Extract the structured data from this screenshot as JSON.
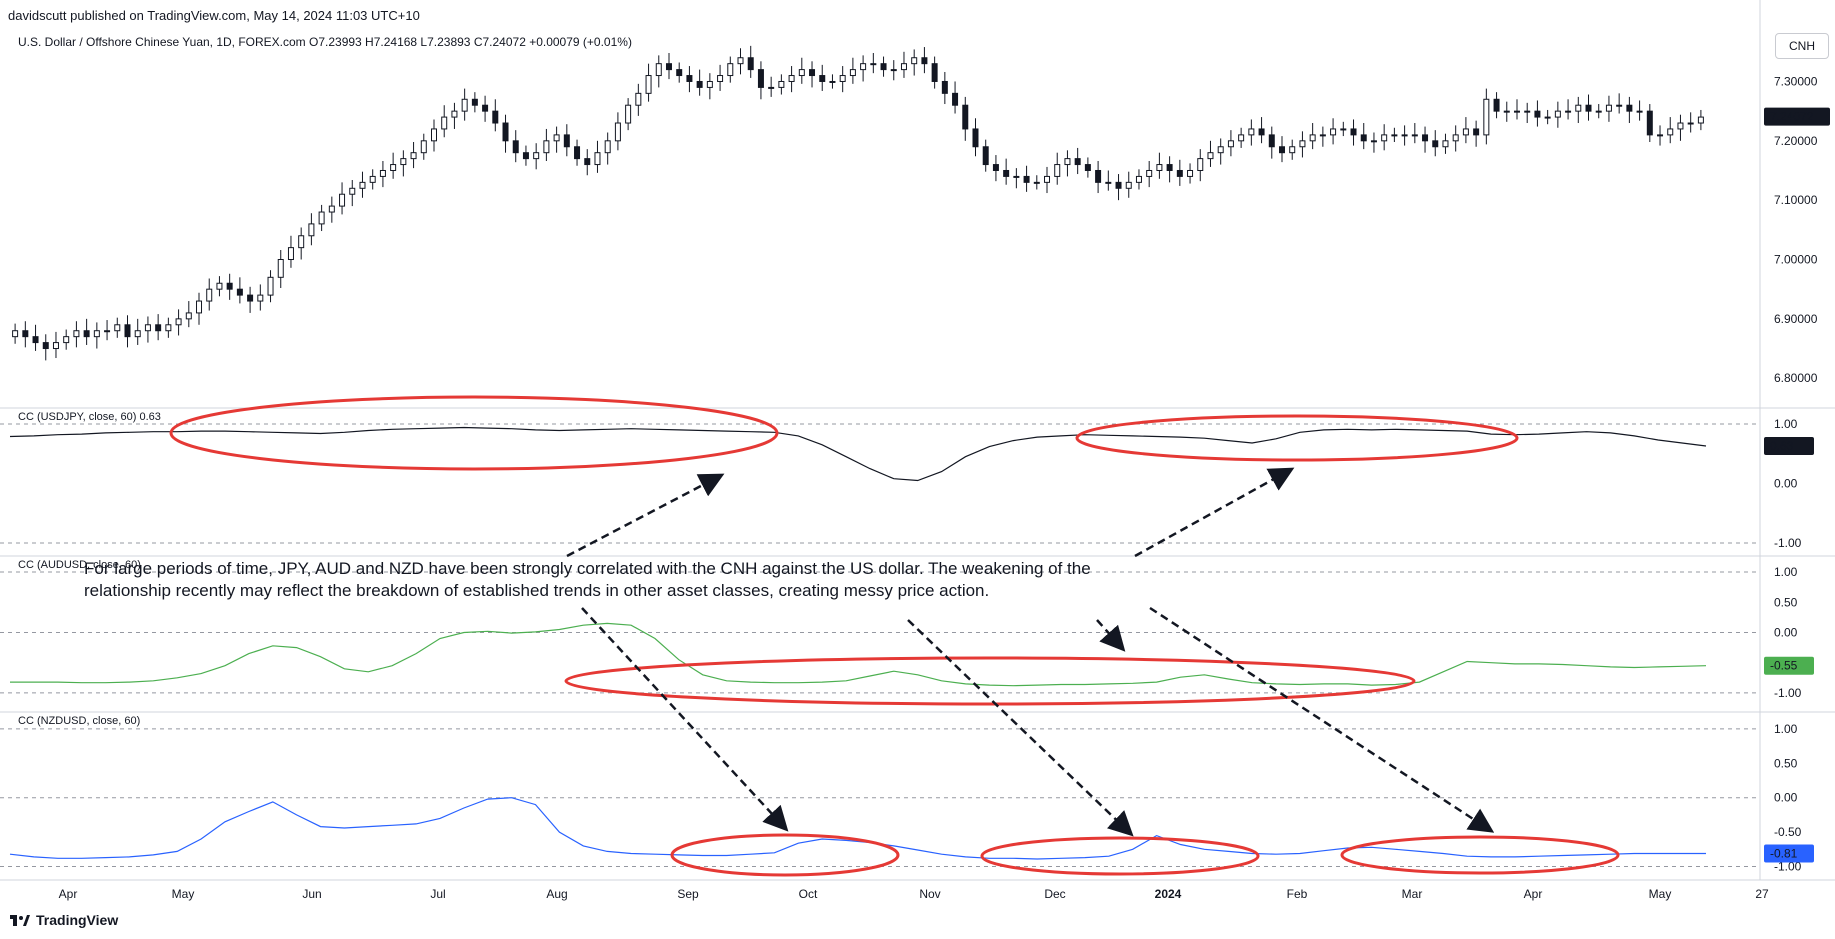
{
  "publisher": "davidscutt published on TradingView.com, May 14, 2024 11:03 UTC+10",
  "instrument": "U.S. Dollar / Offshore Chinese Yuan, 1D, FOREX.com   O7.23993  H7.24168  L7.23893  C7.24072  +0.00079 (+0.01%)",
  "currency_button": "CNH",
  "brand": "TradingView",
  "annotation": "For large periods of time, JPY, AUD and NZD have been strongly correlated with the CNH against the US dollar. The weakening of the relationship recently may reflect the breakdown of established trends in other asset classes, creating messy price action.",
  "colors": {
    "up": "#131722",
    "down": "#131722",
    "usdjpy": "#131722",
    "audusd": "#4caf50",
    "nzdusd": "#2962ff",
    "ellipse": "#e53935",
    "grid": "#d1d4dc"
  },
  "chart_data": [
    {
      "type": "candlestick",
      "name": "USDCNH",
      "x_labels": [
        "Apr",
        "May",
        "Jun",
        "Jul",
        "Aug",
        "Sep",
        "Oct",
        "Nov",
        "Dec",
        "2024",
        "Feb",
        "Mar",
        "Apr",
        "May",
        "27"
      ],
      "ylim": [
        6.77,
        7.38
      ],
      "yticks": [
        "7.30000",
        "7.20000",
        "7.10000",
        "7.00000",
        "6.90000",
        "6.80000"
      ],
      "last_value": "7.24072",
      "close": [
        6.88,
        6.87,
        6.86,
        6.85,
        6.86,
        6.87,
        6.88,
        6.87,
        6.88,
        6.88,
        6.89,
        6.87,
        6.88,
        6.89,
        6.88,
        6.89,
        6.9,
        6.91,
        6.93,
        6.95,
        6.96,
        6.95,
        6.94,
        6.93,
        6.94,
        6.97,
        7.0,
        7.02,
        7.04,
        7.06,
        7.08,
        7.09,
        7.11,
        7.12,
        7.13,
        7.14,
        7.15,
        7.16,
        7.17,
        7.18,
        7.2,
        7.22,
        7.24,
        7.25,
        7.27,
        7.26,
        7.25,
        7.23,
        7.2,
        7.18,
        7.17,
        7.18,
        7.2,
        7.21,
        7.19,
        7.17,
        7.16,
        7.18,
        7.2,
        7.23,
        7.26,
        7.28,
        7.31,
        7.33,
        7.32,
        7.31,
        7.3,
        7.29,
        7.3,
        7.31,
        7.33,
        7.34,
        7.32,
        7.29,
        7.29,
        7.3,
        7.31,
        7.32,
        7.31,
        7.3,
        7.3,
        7.31,
        7.32,
        7.33,
        7.33,
        7.32,
        7.32,
        7.33,
        7.34,
        7.33,
        7.3,
        7.28,
        7.26,
        7.22,
        7.19,
        7.16,
        7.15,
        7.14,
        7.14,
        7.13,
        7.13,
        7.14,
        7.16,
        7.17,
        7.16,
        7.15,
        7.13,
        7.13,
        7.12,
        7.13,
        7.14,
        7.15,
        7.16,
        7.15,
        7.14,
        7.15,
        7.17,
        7.18,
        7.19,
        7.2,
        7.21,
        7.22,
        7.21,
        7.19,
        7.18,
        7.19,
        7.2,
        7.21,
        7.21,
        7.22,
        7.22,
        7.21,
        7.2,
        7.2,
        7.21,
        7.21,
        7.21,
        7.21,
        7.2,
        7.19,
        7.2,
        7.21,
        7.22,
        7.21,
        7.27,
        7.25,
        7.25,
        7.25,
        7.25,
        7.24,
        7.24,
        7.25,
        7.25,
        7.26,
        7.25,
        7.25,
        7.26,
        7.26,
        7.25,
        7.25,
        7.21,
        7.21,
        7.22,
        7.23,
        7.23,
        7.24
      ]
    },
    {
      "type": "line",
      "name": "CC (USDJPY, close, 60)",
      "label": "CC (USDJPY, close, 60)  0.63",
      "last_value": "0.63",
      "ylim": [
        -1.05,
        1.1
      ],
      "yticks": [
        "1.00",
        "0.00",
        "-1.00"
      ],
      "values": [
        0.79,
        0.8,
        0.82,
        0.83,
        0.85,
        0.86,
        0.87,
        0.87,
        0.88,
        0.88,
        0.87,
        0.86,
        0.85,
        0.84,
        0.86,
        0.89,
        0.91,
        0.92,
        0.93,
        0.94,
        0.93,
        0.92,
        0.9,
        0.89,
        0.9,
        0.91,
        0.92,
        0.91,
        0.9,
        0.89,
        0.88,
        0.87,
        0.86,
        0.8,
        0.65,
        0.45,
        0.25,
        0.08,
        0.05,
        0.2,
        0.45,
        0.62,
        0.72,
        0.78,
        0.8,
        0.82,
        0.81,
        0.8,
        0.79,
        0.78,
        0.76,
        0.72,
        0.68,
        0.75,
        0.86,
        0.9,
        0.91,
        0.9,
        0.91,
        0.9,
        0.89,
        0.88,
        0.83,
        0.82,
        0.83,
        0.85,
        0.87,
        0.85,
        0.8,
        0.73,
        0.68,
        0.63
      ]
    },
    {
      "type": "line",
      "name": "CC (AUDUSD, close, 60)",
      "label": "CC (AUDUSD, close, 60)",
      "last_value": "-0.55",
      "ylim": [
        -1.15,
        1.1
      ],
      "yticks": [
        "1.00",
        "0.50",
        "0.00",
        "-0.50",
        "-1.00"
      ],
      "values": [
        -0.82,
        -0.82,
        -0.82,
        -0.83,
        -0.83,
        -0.82,
        -0.8,
        -0.75,
        -0.68,
        -0.55,
        -0.35,
        -0.22,
        -0.25,
        -0.4,
        -0.6,
        -0.65,
        -0.55,
        -0.35,
        -0.1,
        0.0,
        0.02,
        -0.01,
        0.01,
        0.05,
        0.12,
        0.15,
        0.12,
        -0.1,
        -0.45,
        -0.7,
        -0.8,
        -0.82,
        -0.83,
        -0.83,
        -0.82,
        -0.8,
        -0.72,
        -0.64,
        -0.7,
        -0.8,
        -0.85,
        -0.87,
        -0.88,
        -0.87,
        -0.86,
        -0.86,
        -0.85,
        -0.84,
        -0.82,
        -0.74,
        -0.7,
        -0.77,
        -0.83,
        -0.85,
        -0.86,
        -0.85,
        -0.85,
        -0.87,
        -0.86,
        -0.82,
        -0.65,
        -0.48,
        -0.5,
        -0.52,
        -0.52,
        -0.53,
        -0.55,
        -0.57,
        -0.58,
        -0.57,
        -0.56,
        -0.55
      ]
    },
    {
      "type": "line",
      "name": "CC (NZDUSD, close, 60)",
      "label": "CC (NZDUSD, close, 60)",
      "last_value": "-0.81",
      "ylim": [
        -1.05,
        1.1
      ],
      "yticks": [
        "1.00",
        "0.50",
        "0.00",
        "-0.50",
        "-1.00"
      ],
      "values": [
        -0.82,
        -0.86,
        -0.88,
        -0.88,
        -0.87,
        -0.86,
        -0.83,
        -0.78,
        -0.6,
        -0.35,
        -0.2,
        -0.06,
        -0.25,
        -0.42,
        -0.44,
        -0.42,
        -0.4,
        -0.38,
        -0.3,
        -0.15,
        -0.02,
        0.0,
        -0.1,
        -0.5,
        -0.7,
        -0.78,
        -0.81,
        -0.82,
        -0.83,
        -0.84,
        -0.84,
        -0.82,
        -0.8,
        -0.66,
        -0.6,
        -0.62,
        -0.65,
        -0.7,
        -0.76,
        -0.82,
        -0.86,
        -0.88,
        -0.88,
        -0.89,
        -0.88,
        -0.87,
        -0.85,
        -0.75,
        -0.55,
        -0.68,
        -0.75,
        -0.78,
        -0.81,
        -0.82,
        -0.81,
        -0.77,
        -0.73,
        -0.72,
        -0.75,
        -0.78,
        -0.81,
        -0.85,
        -0.86,
        -0.86,
        -0.85,
        -0.84,
        -0.83,
        -0.82,
        -0.81,
        -0.81,
        -0.81,
        -0.81
      ]
    }
  ]
}
